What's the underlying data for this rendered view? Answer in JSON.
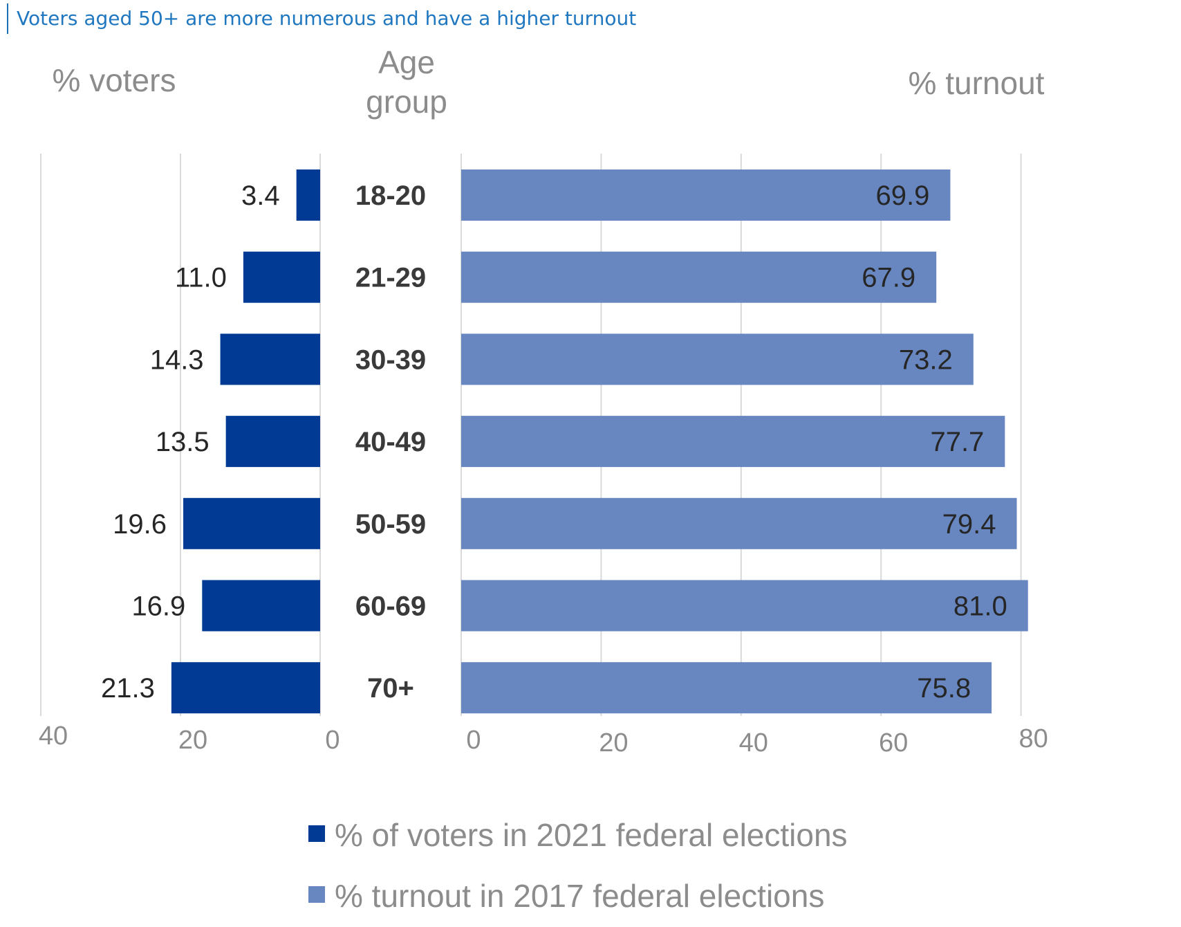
{
  "caption": "Voters aged 50+ are more numerous and have a higher turnout",
  "chart_data": {
    "type": "bar",
    "orientation": "horizontal-butterfly",
    "categories_header": [
      "Age",
      "group"
    ],
    "categories": [
      "18-20",
      "21-29",
      "30-39",
      "40-49",
      "50-59",
      "60-69",
      "70+"
    ],
    "left_panel": {
      "header": "% voters",
      "xlim": [
        40,
        0
      ],
      "ticks": [
        "40",
        "20",
        "0"
      ],
      "series": {
        "name": "% of voters in 2021 federal elections",
        "color": "#003a94",
        "values": [
          3.4,
          11.0,
          14.3,
          13.5,
          19.6,
          16.9,
          21.3
        ],
        "labels": [
          "3.4",
          "11.0",
          "14.3",
          "13.5",
          "19.6",
          "16.9",
          "21.3"
        ]
      }
    },
    "right_panel": {
      "header": "% turnout",
      "xlim": [
        0,
        80
      ],
      "ticks": [
        "0",
        "20",
        "40",
        "60",
        "80"
      ],
      "series": {
        "name": "% turnout in 2017 federal elections",
        "color": "#6887c1",
        "values": [
          69.9,
          67.9,
          73.2,
          77.7,
          79.4,
          81.0,
          75.8
        ],
        "labels": [
          "69.9",
          "67.9",
          "73.2",
          "77.7",
          "79.4",
          "81.0",
          "75.8"
        ]
      }
    },
    "grid": true,
    "legend": "bottom"
  }
}
